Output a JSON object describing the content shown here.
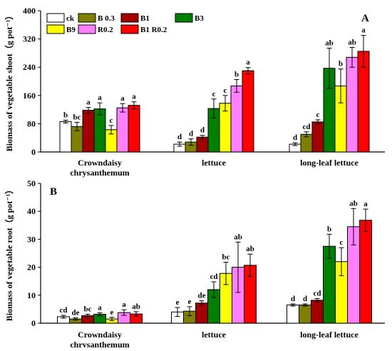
{
  "chart_data": [
    {
      "type": "bar",
      "panel_label": "A",
      "ylabel": "Biomass of vegetable shoot（g pot⁻¹）",
      "ylim": [
        0,
        400
      ],
      "yticks": [
        0,
        80,
        160,
        240,
        320,
        400
      ],
      "categories": [
        "Crowndaisy\nchrysanthemum",
        "lettuce",
        "long-leaf lettuce"
      ],
      "legend": [
        "ck",
        "B 0.3",
        "B1",
        "B3",
        "B9",
        "R0.2",
        "B1 R0.2"
      ],
      "colors": [
        "#ffffff",
        "#808000",
        "#a50000",
        "#008000",
        "#ffff00",
        "#ff80ff",
        "#ff0000"
      ],
      "series": [
        {
          "name": "ck",
          "values": [
            86,
            22,
            22
          ],
          "errors": [
            4,
            6,
            4
          ],
          "letters": [
            "b",
            "d",
            "d"
          ]
        },
        {
          "name": "B 0.3",
          "values": [
            72,
            28,
            50
          ],
          "errors": [
            12,
            9,
            7
          ],
          "letters": [
            "bc",
            "d",
            "cd"
          ]
        },
        {
          "name": "B1",
          "values": [
            118,
            42,
            85
          ],
          "errors": [
            8,
            5,
            6
          ],
          "letters": [
            "a",
            "d",
            "c"
          ]
        },
        {
          "name": "B3",
          "values": [
            122,
            123,
            237
          ],
          "errors": [
            17,
            27,
            57
          ],
          "letters": [
            "a",
            "c",
            "ab"
          ]
        },
        {
          "name": "B9",
          "values": [
            63,
            138,
            187
          ],
          "errors": [
            12,
            22,
            48
          ],
          "letters": [
            "c",
            "c",
            "b"
          ]
        },
        {
          "name": "R0.2",
          "values": [
            125,
            187,
            268
          ],
          "errors": [
            12,
            18,
            28
          ],
          "letters": [
            "a",
            "b",
            "ab"
          ]
        },
        {
          "name": "B1 R0.2",
          "values": [
            132,
            230,
            285
          ],
          "errors": [
            10,
            9,
            45
          ],
          "letters": [
            "a",
            "a",
            "a"
          ]
        }
      ]
    },
    {
      "type": "bar",
      "panel_label": "B",
      "ylabel": "Biomass of vegetable root（g pot⁻¹）",
      "ylim": [
        0,
        50
      ],
      "yticks": [
        0,
        10,
        20,
        30,
        40,
        50
      ],
      "categories": [
        "Crowndaisy\nchrysanthemum",
        "lettuce",
        "long-leaf lettuce"
      ],
      "colors": [
        "#ffffff",
        "#808000",
        "#a50000",
        "#008000",
        "#ffff00",
        "#ff80ff",
        "#ff0000"
      ],
      "series": [
        {
          "name": "ck",
          "values": [
            2.3,
            4.0,
            6.5
          ],
          "errors": [
            0.5,
            1.6,
            0.4
          ],
          "letters": [
            "cd",
            "e",
            "d"
          ]
        },
        {
          "name": "B 0.3",
          "values": [
            1.5,
            4.3,
            6.5
          ],
          "errors": [
            0.4,
            1.6,
            0.4
          ],
          "letters": [
            "de",
            "e",
            "d"
          ]
        },
        {
          "name": "B1",
          "values": [
            2.7,
            7.2,
            8.2
          ],
          "errors": [
            0.5,
            0.8,
            0.6
          ],
          "letters": [
            "bc",
            "de",
            "cd"
          ]
        },
        {
          "name": "B3",
          "values": [
            3.2,
            12.0,
            27.5
          ],
          "errors": [
            0.5,
            2.8,
            4.3
          ],
          "letters": [
            "a",
            "cd",
            "b"
          ]
        },
        {
          "name": "B9",
          "values": [
            1.5,
            17.8,
            22.0
          ],
          "errors": [
            0.6,
            4.0,
            5.0
          ],
          "letters": [
            "e",
            "bc",
            "c"
          ]
        },
        {
          "name": "R0.2",
          "values": [
            3.8,
            20.0,
            34.5
          ],
          "errors": [
            1.0,
            9.0,
            6.5
          ],
          "letters": [
            "a",
            "ab",
            "ab"
          ]
        },
        {
          "name": "B1 R0.2",
          "values": [
            3.3,
            20.7,
            36.8
          ],
          "errors": [
            0.8,
            4.0,
            4.0
          ],
          "letters": [
            "ab",
            "ab",
            "a"
          ]
        }
      ]
    }
  ]
}
